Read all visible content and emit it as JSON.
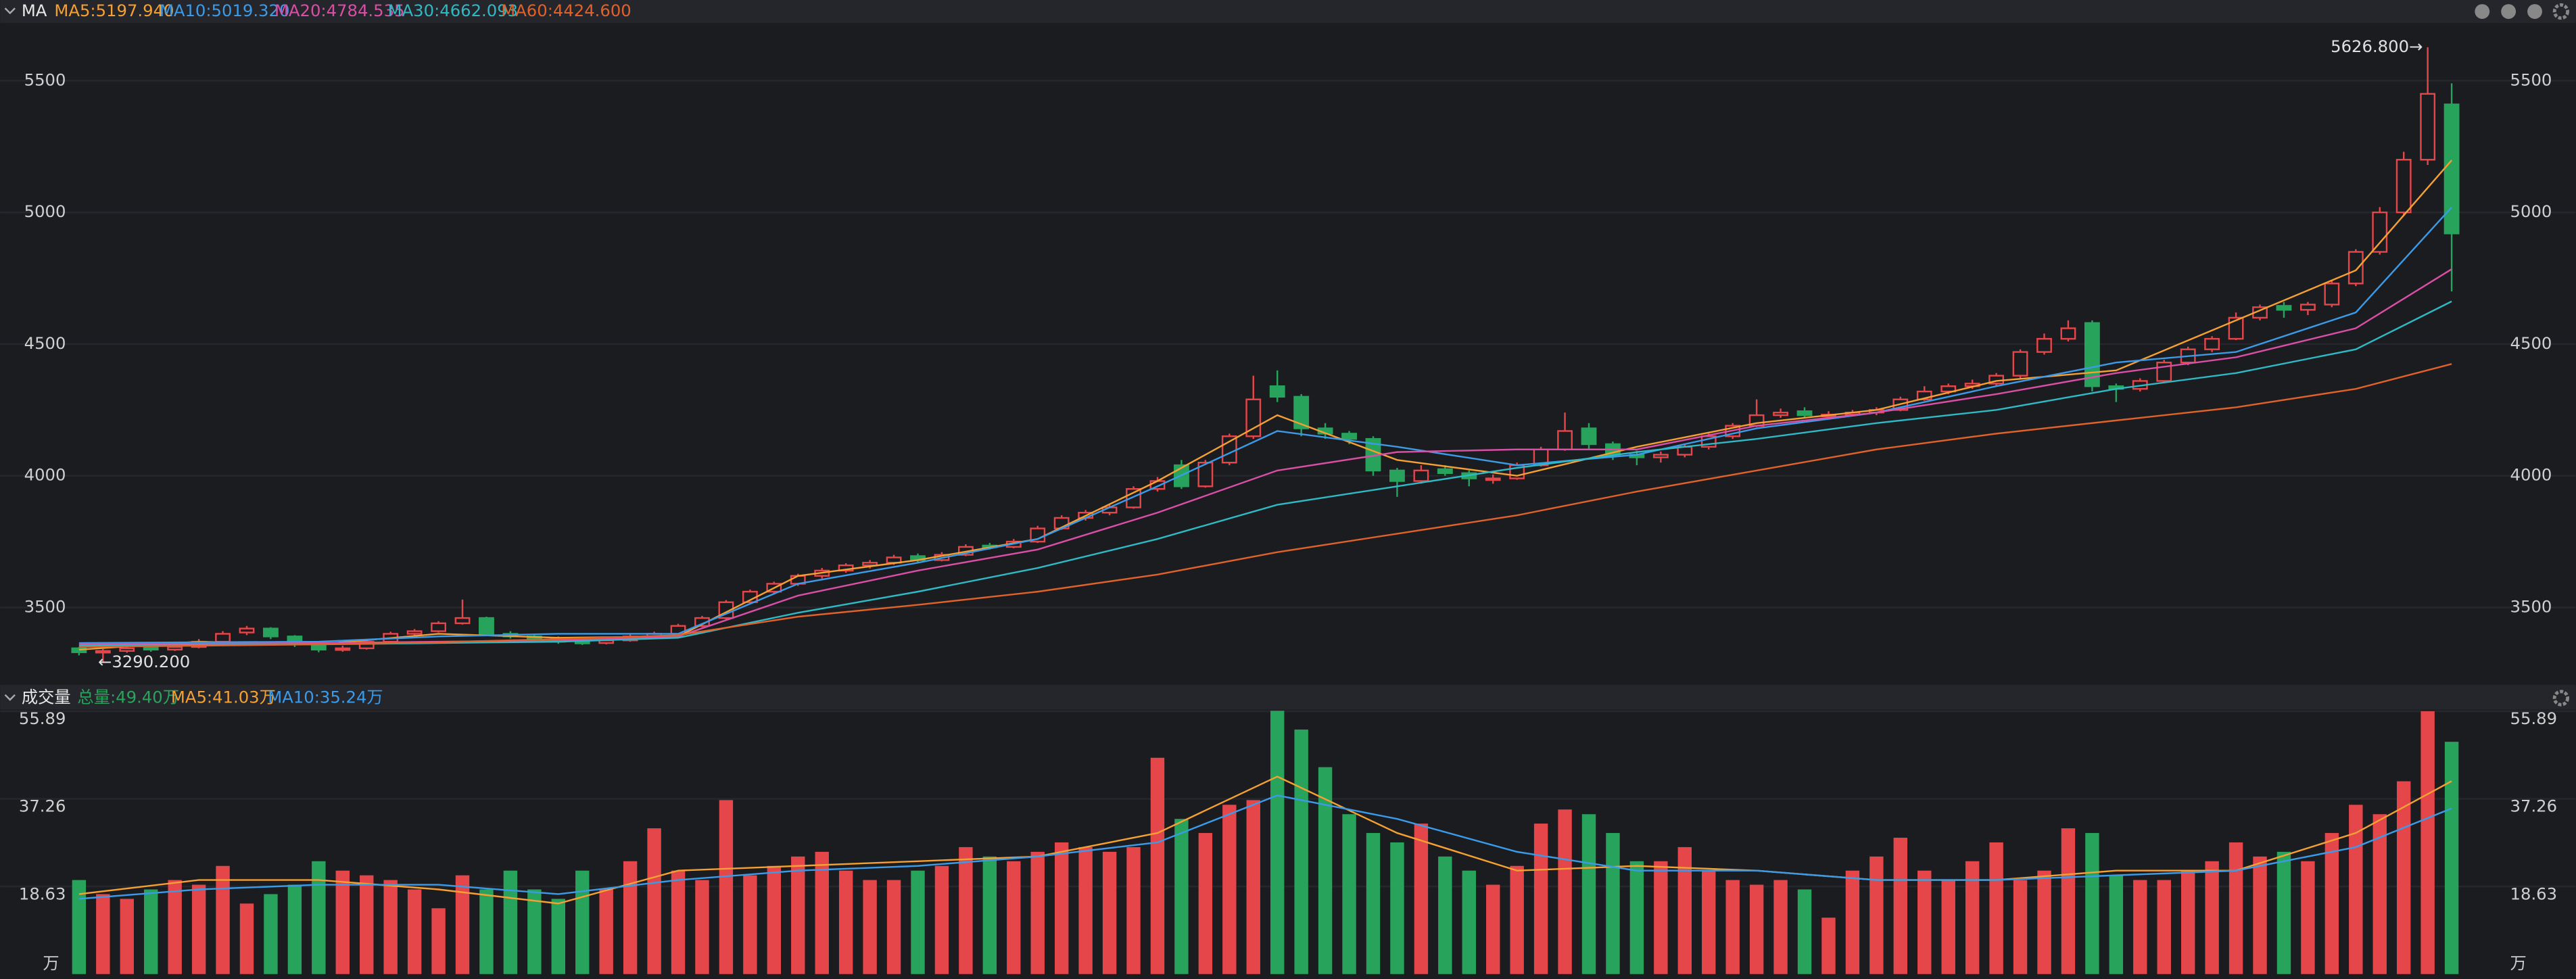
{
  "chart_data": [
    {
      "type": "candlestick",
      "title": "MA",
      "up_color": "#e5464a",
      "down_color": "#27a35c",
      "ylim": [
        3212,
        5719
      ],
      "yticks": [
        3500,
        4000,
        4500,
        5000,
        5500
      ],
      "grid": true,
      "max_label": "5626.800→",
      "min_label": "←3290.200",
      "candles": [
        [
          3345,
          3350,
          3318,
          3330
        ],
        [
          3330,
          3342,
          3290.2,
          3335
        ],
        [
          3335,
          3355,
          3328,
          3345
        ],
        [
          3350,
          3360,
          3332,
          3340
        ],
        [
          3340,
          3360,
          3335,
          3350
        ],
        [
          3350,
          3380,
          3345,
          3370
        ],
        [
          3370,
          3410,
          3365,
          3400
        ],
        [
          3405,
          3430,
          3395,
          3420
        ],
        [
          3420,
          3425,
          3380,
          3390
        ],
        [
          3390,
          3395,
          3350,
          3360
        ],
        [
          3360,
          3365,
          3330,
          3340
        ],
        [
          3340,
          3355,
          3332,
          3345
        ],
        [
          3345,
          3378,
          3340,
          3370
        ],
        [
          3370,
          3408,
          3365,
          3400
        ],
        [
          3400,
          3418,
          3392,
          3410
        ],
        [
          3410,
          3448,
          3405,
          3440
        ],
        [
          3440,
          3530,
          3435,
          3460
        ],
        [
          3460,
          3465,
          3392,
          3400
        ],
        [
          3400,
          3410,
          3382,
          3390
        ],
        [
          3390,
          3398,
          3372,
          3380
        ],
        [
          3380,
          3390,
          3362,
          3370
        ],
        [
          3370,
          3378,
          3358,
          3365
        ],
        [
          3365,
          3382,
          3360,
          3375
        ],
        [
          3375,
          3398,
          3370,
          3390
        ],
        [
          3390,
          3408,
          3385,
          3400
        ],
        [
          3400,
          3438,
          3395,
          3430
        ],
        [
          3430,
          3468,
          3425,
          3460
        ],
        [
          3460,
          3528,
          3455,
          3520
        ],
        [
          3520,
          3568,
          3512,
          3560
        ],
        [
          3560,
          3598,
          3550,
          3590
        ],
        [
          3590,
          3628,
          3582,
          3620
        ],
        [
          3620,
          3650,
          3610,
          3640
        ],
        [
          3640,
          3668,
          3632,
          3660
        ],
        [
          3660,
          3680,
          3648,
          3670
        ],
        [
          3670,
          3700,
          3662,
          3690
        ],
        [
          3695,
          3705,
          3672,
          3680
        ],
        [
          3680,
          3710,
          3675,
          3700
        ],
        [
          3700,
          3740,
          3695,
          3730
        ],
        [
          3735,
          3745,
          3720,
          3730
        ],
        [
          3730,
          3760,
          3725,
          3750
        ],
        [
          3750,
          3810,
          3745,
          3800
        ],
        [
          3800,
          3850,
          3795,
          3840
        ],
        [
          3840,
          3870,
          3830,
          3860
        ],
        [
          3860,
          3890,
          3850,
          3880
        ],
        [
          3880,
          3960,
          3875,
          3950
        ],
        [
          3950,
          3995,
          3940,
          3980
        ],
        [
          4040,
          4060,
          3950,
          3960
        ],
        [
          3960,
          4060,
          3955,
          4050
        ],
        [
          4050,
          4160,
          4040,
          4150
        ],
        [
          4150,
          4380,
          4140,
          4290
        ],
        [
          4340,
          4400,
          4280,
          4300
        ],
        [
          4300,
          4310,
          4150,
          4180
        ],
        [
          4180,
          4200,
          4140,
          4160
        ],
        [
          4160,
          4170,
          4120,
          4140
        ],
        [
          4140,
          4150,
          4000,
          4020
        ],
        [
          4020,
          4030,
          3920,
          3980
        ],
        [
          3980,
          4040,
          3970,
          4020
        ],
        [
          4025,
          4040,
          4000,
          4010
        ],
        [
          4010,
          4020,
          3960,
          3990
        ],
        [
          3985,
          4005,
          3970,
          3990
        ],
        [
          3990,
          4050,
          3985,
          4040
        ],
        [
          4040,
          4110,
          4035,
          4100
        ],
        [
          4100,
          4240,
          4095,
          4170
        ],
        [
          4180,
          4200,
          4100,
          4120
        ],
        [
          4120,
          4130,
          4060,
          4080
        ],
        [
          4080,
          4095,
          4040,
          4070
        ],
        [
          4070,
          4092,
          4050,
          4080
        ],
        [
          4080,
          4120,
          4070,
          4110
        ],
        [
          4110,
          4160,
          4100,
          4150
        ],
        [
          4150,
          4200,
          4140,
          4190
        ],
        [
          4190,
          4290,
          4185,
          4230
        ],
        [
          4230,
          4255,
          4220,
          4240
        ],
        [
          4245,
          4260,
          4220,
          4230
        ],
        [
          4230,
          4245,
          4215,
          4232
        ],
        [
          4232,
          4250,
          4225,
          4240
        ],
        [
          4240,
          4260,
          4230,
          4250
        ],
        [
          4250,
          4300,
          4245,
          4290
        ],
        [
          4290,
          4340,
          4285,
          4320
        ],
        [
          4320,
          4350,
          4310,
          4340
        ],
        [
          4340,
          4365,
          4330,
          4350
        ],
        [
          4350,
          4390,
          4340,
          4380
        ],
        [
          4380,
          4480,
          4370,
          4470
        ],
        [
          4470,
          4540,
          4460,
          4520
        ],
        [
          4520,
          4590,
          4510,
          4560
        ],
        [
          4580,
          4590,
          4320,
          4340
        ],
        [
          4340,
          4350,
          4280,
          4330
        ],
        [
          4330,
          4370,
          4320,
          4360
        ],
        [
          4360,
          4440,
          4355,
          4430
        ],
        [
          4430,
          4490,
          4420,
          4480
        ],
        [
          4480,
          4530,
          4470,
          4520
        ],
        [
          4520,
          4620,
          4515,
          4600
        ],
        [
          4600,
          4650,
          4590,
          4640
        ],
        [
          4645,
          4660,
          4600,
          4630
        ],
        [
          4630,
          4660,
          4610,
          4650
        ],
        [
          4650,
          4740,
          4640,
          4730
        ],
        [
          4730,
          4860,
          4720,
          4850
        ],
        [
          4850,
          5020,
          4840,
          5000
        ],
        [
          5000,
          5230,
          4990,
          5200
        ],
        [
          5200,
          5626.8,
          5180,
          5450
        ],
        [
          5410,
          5490,
          4700,
          4920
        ]
      ],
      "overlays": [
        {
          "name": "MA5:5197.940",
          "color": "#f5a032",
          "x": [
            0,
            5,
            10,
            15,
            20,
            25,
            30,
            35,
            40,
            45,
            50,
            55,
            60,
            65,
            70,
            75,
            80,
            85,
            90,
            95,
            99
          ],
          "values": [
            3340,
            3370,
            3360,
            3400,
            3385,
            3390,
            3620,
            3680,
            3760,
            3980,
            4230,
            4060,
            4000,
            4110,
            4200,
            4250,
            4360,
            4400,
            4590,
            4780,
            5197.94
          ]
        },
        {
          "name": "MA10:5019.320",
          "color": "#3b9be8",
          "x": [
            0,
            5,
            10,
            15,
            20,
            25,
            30,
            35,
            40,
            45,
            50,
            55,
            60,
            65,
            70,
            75,
            80,
            85,
            90,
            95,
            99
          ],
          "values": [
            3365,
            3368,
            3370,
            3390,
            3400,
            3400,
            3590,
            3670,
            3760,
            3960,
            4170,
            4110,
            4040,
            4080,
            4180,
            4240,
            4340,
            4430,
            4470,
            4620,
            5019.32
          ]
        },
        {
          "name": "MA20:4784.535",
          "color": "#d94fa6",
          "x": [
            0,
            5,
            10,
            15,
            20,
            25,
            30,
            35,
            40,
            45,
            50,
            55,
            60,
            65,
            70,
            75,
            80,
            85,
            90,
            95,
            99
          ],
          "values": [
            3360,
            3362,
            3365,
            3370,
            3375,
            3390,
            3545,
            3640,
            3720,
            3860,
            4020,
            4090,
            4100,
            4100,
            4190,
            4240,
            4310,
            4390,
            4450,
            4560,
            4784.535
          ]
        },
        {
          "name": "MA30:4662.093",
          "color": "#2fb9c4",
          "x": [
            0,
            5,
            10,
            15,
            20,
            25,
            30,
            35,
            40,
            45,
            50,
            55,
            60,
            65,
            70,
            75,
            80,
            85,
            90,
            95,
            99
          ],
          "values": [
            3355,
            3358,
            3360,
            3365,
            3370,
            3385,
            3480,
            3560,
            3650,
            3760,
            3890,
            3960,
            4030,
            4090,
            4140,
            4200,
            4250,
            4330,
            4390,
            4480,
            4662.093
          ]
        },
        {
          "name": "MA60:4424.600",
          "color": "#e0622a",
          "x": [
            0,
            5,
            10,
            15,
            20,
            25,
            30,
            35,
            40,
            45,
            50,
            55,
            60,
            65,
            70,
            75,
            80,
            85,
            90,
            95,
            99
          ],
          "values": [
            3350,
            3355,
            3360,
            3368,
            3380,
            3395,
            3465,
            3510,
            3560,
            3625,
            3710,
            3780,
            3850,
            3940,
            4020,
            4100,
            4160,
            4210,
            4260,
            4330,
            4424.6
          ]
        }
      ]
    },
    {
      "type": "bar",
      "title": "成交量",
      "total_label": "总量:49.40万",
      "total_color": "#2aa35c",
      "unit": "万",
      "ylim": [
        0,
        55.89
      ],
      "yticks": [
        18.63,
        37.26,
        55.89
      ],
      "grid": true,
      "values": [
        20,
        17,
        16,
        18,
        20,
        19,
        23,
        15,
        17,
        19,
        24,
        22,
        21,
        20,
        18,
        14,
        21,
        18,
        22,
        18,
        16,
        22,
        18,
        24,
        31,
        22,
        20,
        37,
        21,
        23,
        25,
        26,
        22,
        20,
        20,
        22,
        23,
        27,
        25,
        24,
        26,
        28,
        27,
        26,
        27,
        46,
        33,
        30,
        36,
        37,
        56,
        52,
        44,
        34,
        30,
        28,
        32,
        25,
        22,
        19,
        23,
        32,
        35,
        34,
        30,
        24,
        24,
        27,
        22,
        20,
        19,
        20,
        18,
        12,
        22,
        25,
        29,
        22,
        20,
        24,
        28,
        20,
        22,
        31,
        30,
        21,
        20,
        20,
        22,
        24,
        28,
        25,
        26,
        24,
        30,
        36,
        34,
        41,
        55.89,
        49.4
      ],
      "overlays": [
        {
          "name": "MA5:41.03万",
          "color": "#f5a032",
          "x": [
            0,
            5,
            10,
            15,
            20,
            25,
            30,
            35,
            40,
            45,
            50,
            55,
            60,
            65,
            70,
            75,
            80,
            85,
            90,
            95,
            99
          ],
          "values": [
            17,
            20,
            20,
            18,
            15,
            22,
            23,
            24,
            25,
            30,
            42,
            30,
            22,
            23,
            22,
            20,
            20,
            22,
            22,
            30,
            41.03
          ]
        },
        {
          "name": "MA10:35.24万",
          "color": "#3b9be8",
          "x": [
            0,
            5,
            10,
            15,
            20,
            25,
            30,
            35,
            40,
            45,
            50,
            55,
            60,
            65,
            70,
            75,
            80,
            85,
            90,
            95,
            99
          ],
          "values": [
            16,
            18,
            19,
            19,
            17,
            20,
            22,
            23,
            25,
            28,
            38,
            33,
            26,
            22,
            22,
            20,
            20,
            21,
            22,
            27,
            35.24
          ]
        }
      ]
    }
  ]
}
